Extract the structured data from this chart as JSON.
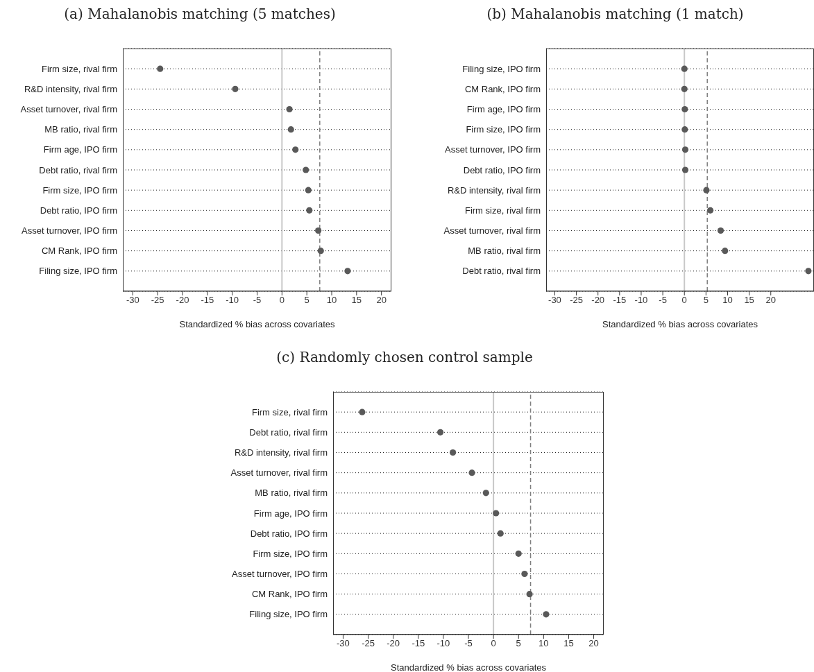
{
  "chart_data": [
    {
      "type": "scatter",
      "title": "(a) Mahalanobis matching (5 matches)",
      "xlabel": "Standardized % bias across covariates",
      "orientation": "horizontal",
      "categories": [
        "Firm size, rival firm",
        "R&D intensity, rival firm",
        "Asset turnover, rival firm",
        "MB ratio, rival firm",
        "Firm age, IPO firm",
        "Debt ratio, rival firm",
        "Firm size, IPO firm",
        "Debt ratio, IPO firm",
        "Asset turnover, IPO firm",
        "CM Rank, IPO firm",
        "Filing size, IPO firm"
      ],
      "series": [
        {
          "color": "#595959",
          "values": [
            -24.5,
            -9.4,
            1.5,
            1.8,
            2.7,
            4.8,
            5.3,
            5.5,
            7.3,
            7.8,
            13.2
          ]
        }
      ],
      "xlim": [
        -32,
        22
      ],
      "xticks": [
        -30,
        -25,
        -20,
        -15,
        -10,
        -5,
        0,
        5,
        10,
        15,
        20
      ],
      "grid": "y",
      "marker": "circle",
      "ref_lines": [
        {
          "axis": "x",
          "value": 0,
          "color": "#c8c8c8",
          "line_style": "solid"
        },
        {
          "axis": "x",
          "value": 7.6,
          "color": "#808080",
          "line_style": "dashed"
        }
      ]
    },
    {
      "type": "scatter",
      "title": "(b) Mahalanobis matching (1 match)",
      "xlabel": "Standardized % bias across covariates",
      "orientation": "horizontal",
      "categories": [
        "Filing size, IPO firm",
        "CM Rank, IPO firm",
        "Firm age, IPO firm",
        "Firm size, IPO firm",
        "Asset turnover, IPO firm",
        "Debt ratio, IPO firm",
        "R&D intensity, rival firm",
        "Firm size, rival firm",
        "Asset turnover, rival firm",
        "MB ratio, rival firm",
        "Debt ratio, rival firm"
      ],
      "series": [
        {
          "color": "#595959",
          "values": [
            0,
            0,
            0.1,
            0.1,
            0.2,
            0.2,
            5.1,
            6.0,
            8.4,
            9.4,
            28.7
          ]
        }
      ],
      "xlim": [
        -32,
        30
      ],
      "xticks": [
        -30,
        -25,
        -20,
        -15,
        -10,
        -5,
        0,
        5,
        10,
        15,
        20
      ],
      "grid": "y",
      "marker": "circle",
      "ref_lines": [
        {
          "axis": "x",
          "value": 0,
          "color": "#c8c8c8",
          "line_style": "solid"
        },
        {
          "axis": "x",
          "value": 5.3,
          "color": "#808080",
          "line_style": "dashed"
        }
      ]
    },
    {
      "type": "scatter",
      "title": "(c) Randomly chosen control sample",
      "xlabel": "Standardized % bias across covariates",
      "orientation": "horizontal",
      "categories": [
        "Firm size, rival firm",
        "Debt ratio, rival firm",
        "R&D intensity, rival firm",
        "Asset turnover, rival firm",
        "MB ratio, rival firm",
        "Firm age, IPO firm",
        "Debt ratio, IPO firm",
        "Firm size, IPO firm",
        "Asset turnover, IPO firm",
        "CM Rank, IPO firm",
        "Filing size, IPO firm"
      ],
      "series": [
        {
          "color": "#595959",
          "values": [
            -26.2,
            -10.6,
            -8.1,
            -4.3,
            -1.5,
            0.5,
            1.4,
            5.0,
            6.2,
            7.2,
            10.5
          ]
        }
      ],
      "xlim": [
        -32,
        22
      ],
      "xticks": [
        -30,
        -25,
        -20,
        -15,
        -10,
        -5,
        0,
        5,
        10,
        15,
        20
      ],
      "grid": "y",
      "marker": "circle",
      "ref_lines": [
        {
          "axis": "x",
          "value": 0,
          "color": "#c8c8c8",
          "line_style": "solid"
        },
        {
          "axis": "x",
          "value": 7.4,
          "color": "#808080",
          "line_style": "dashed"
        }
      ]
    }
  ]
}
